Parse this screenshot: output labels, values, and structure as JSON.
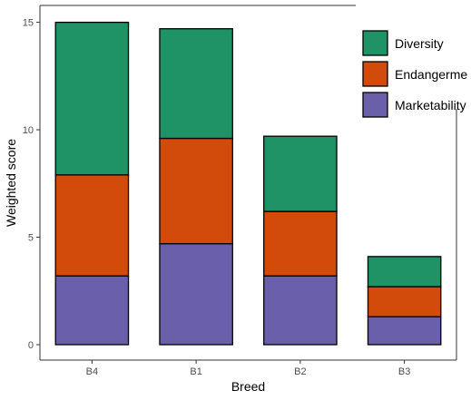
{
  "chart_data": {
    "type": "bar",
    "stacked": true,
    "categories": [
      "B4",
      "B1",
      "B2",
      "B3"
    ],
    "series": [
      {
        "name": "Marketability",
        "color": "#6a5fab",
        "values": [
          3.2,
          4.7,
          3.2,
          1.3
        ]
      },
      {
        "name": "Endangerme",
        "color": "#d24b0b",
        "values": [
          4.7,
          4.9,
          3.0,
          1.4
        ]
      },
      {
        "name": "Diversity",
        "color": "#1f9266",
        "values": [
          7.1,
          5.1,
          3.5,
          1.4
        ]
      }
    ],
    "legend_order": [
      "Diversity",
      "Endangerme",
      "Marketability"
    ],
    "xlabel": "Breed",
    "ylabel": "Weighted score",
    "ylim": [
      0,
      15.7
    ],
    "yticks": [
      0,
      5,
      10,
      15
    ],
    "grid": false,
    "legend_position": "top-right"
  }
}
